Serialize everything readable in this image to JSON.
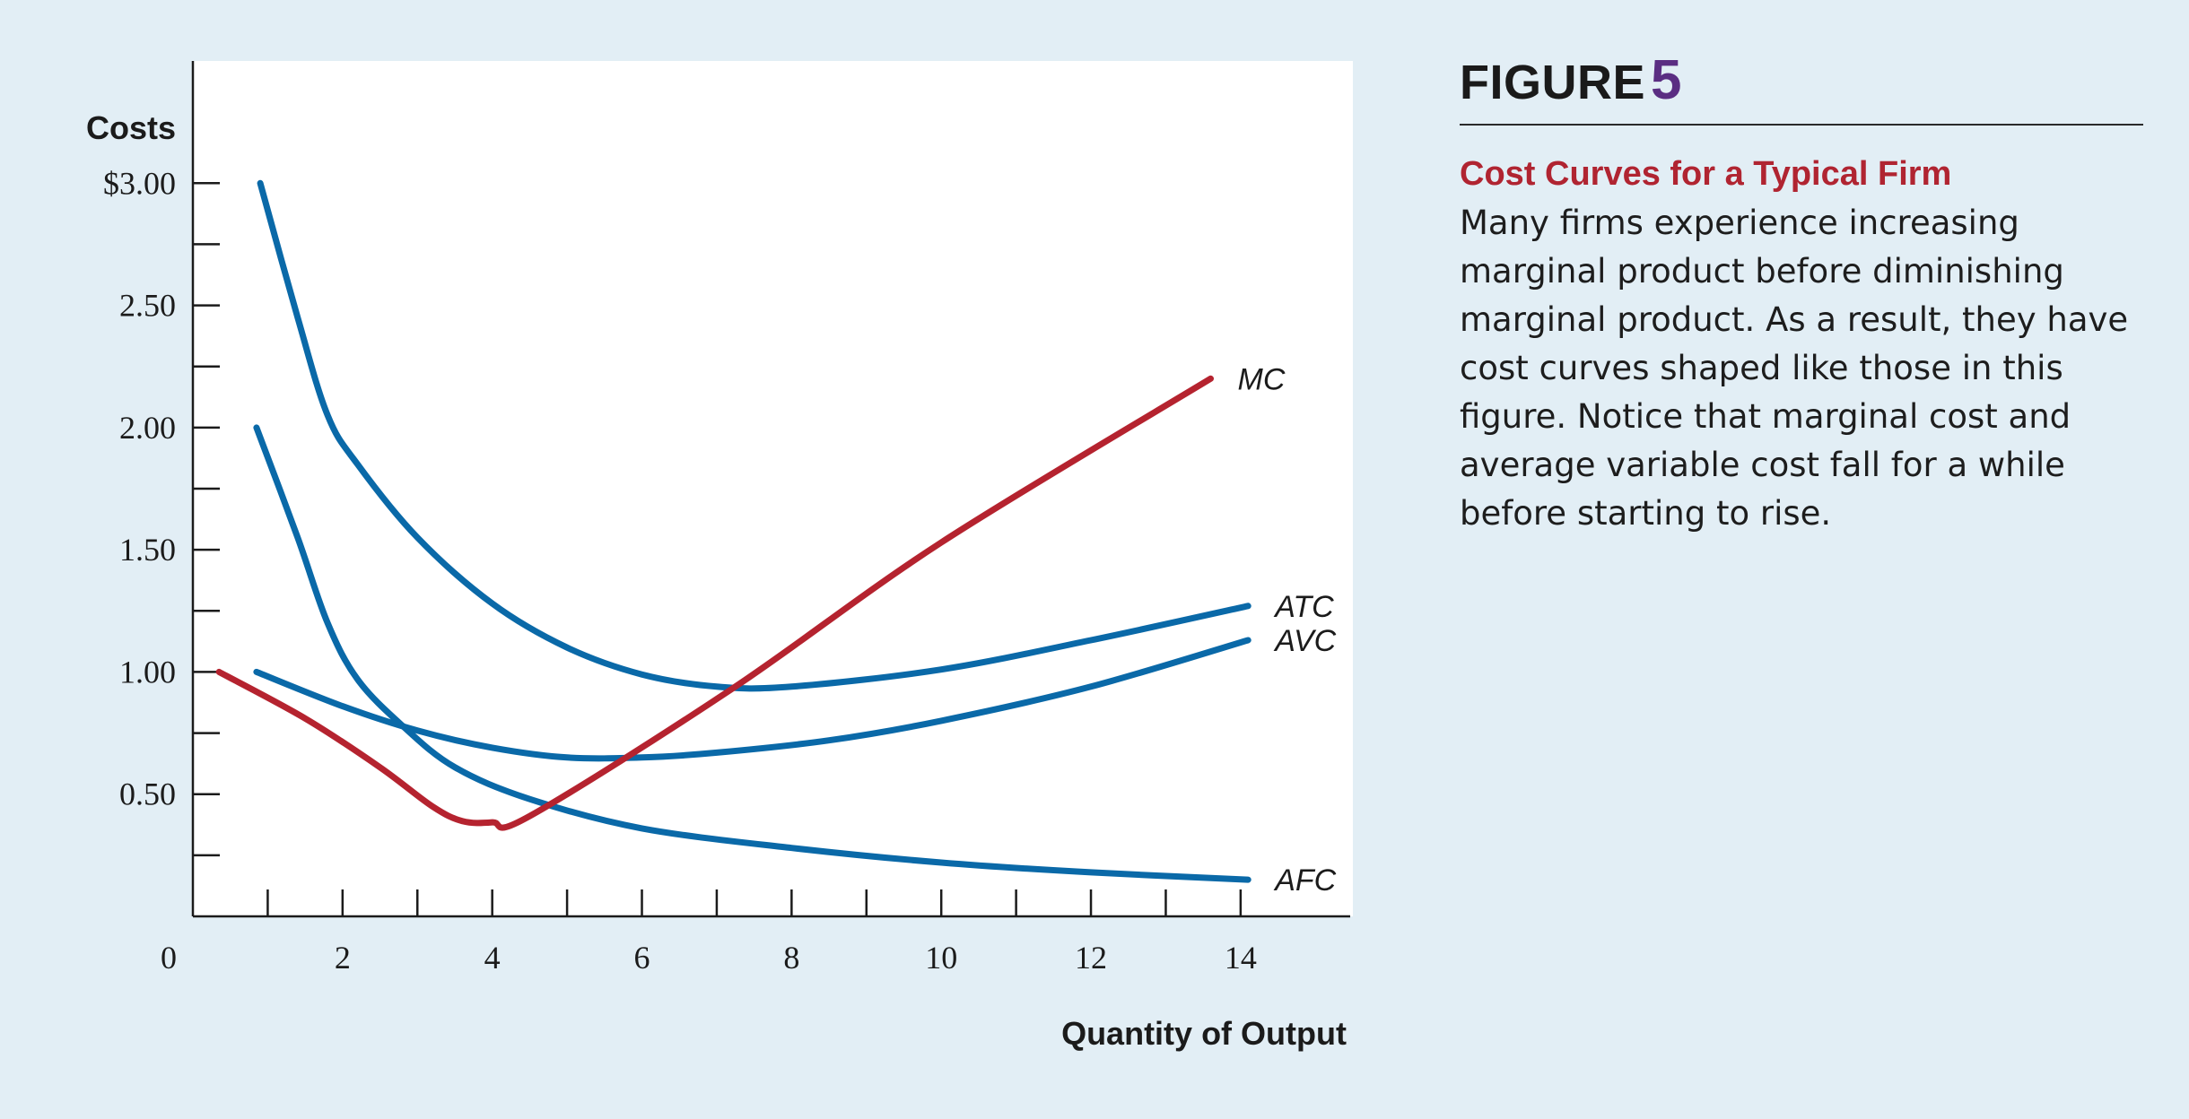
{
  "figure": {
    "label": "FIGURE",
    "number": "5",
    "subtitle": "Cost Curves for a Typical Firm",
    "body": "Many firms experience increasing marginal product before diminishing marginal product. As a result, they have cost curves shaped like those in this figure. Notice that marginal cost and average variable cost fall for a while before starting to rise."
  },
  "chart_data": {
    "type": "line",
    "ylabel": "Costs",
    "xlabel": "Quantity of Output",
    "xlim": [
      0,
      15.5
    ],
    "ylim": [
      0,
      3.5
    ],
    "x_ticks": [
      0,
      2,
      4,
      6,
      8,
      10,
      12,
      14
    ],
    "x_minor_ticks": [
      1,
      3,
      5,
      7,
      9,
      11,
      13
    ],
    "y_ticks": [
      {
        "value": 3.0,
        "label": "$3.00"
      },
      {
        "value": 2.5,
        "label": "2.50"
      },
      {
        "value": 2.0,
        "label": "2.00"
      },
      {
        "value": 1.5,
        "label": "1.50"
      },
      {
        "value": 1.0,
        "label": "1.00"
      },
      {
        "value": 0.5,
        "label": "0.50"
      }
    ],
    "y_minor_ticks": [
      2.75,
      2.25,
      1.75,
      1.25,
      0.75,
      0.25
    ],
    "x_zero_label": "0",
    "colors": {
      "avg": "#0a69a8",
      "mc": "#b5232f",
      "plot_bg": "#ffffff",
      "page_bg": "#e2eef5"
    },
    "series": [
      {
        "name": "MC",
        "color": "#b5232f",
        "points": [
          [
            0.35,
            1.0
          ],
          [
            1.5,
            0.81
          ],
          [
            2.5,
            0.61
          ],
          [
            3.2,
            0.45
          ],
          [
            3.6,
            0.39
          ],
          [
            4.0,
            0.385
          ],
          [
            4.5,
            0.41
          ],
          [
            7.2,
            0.93
          ],
          [
            10.0,
            1.53
          ],
          [
            13.6,
            2.2
          ]
        ]
      },
      {
        "name": "ATC",
        "color": "#0a69a8",
        "points": [
          [
            0.9,
            3.0
          ],
          [
            1.4,
            2.45
          ],
          [
            1.8,
            2.05
          ],
          [
            2.2,
            1.85
          ],
          [
            3.0,
            1.55
          ],
          [
            4.0,
            1.28
          ],
          [
            5.0,
            1.1
          ],
          [
            6.0,
            0.99
          ],
          [
            7.0,
            0.94
          ],
          [
            8.0,
            0.94
          ],
          [
            10.0,
            1.01
          ],
          [
            12.0,
            1.13
          ],
          [
            14.1,
            1.27
          ]
        ]
      },
      {
        "name": "AVC",
        "color": "#0a69a8",
        "points": [
          [
            0.85,
            1.0
          ],
          [
            2.0,
            0.86
          ],
          [
            3.0,
            0.76
          ],
          [
            4.0,
            0.69
          ],
          [
            5.0,
            0.65
          ],
          [
            6.0,
            0.65
          ],
          [
            7.0,
            0.67
          ],
          [
            8.5,
            0.72
          ],
          [
            10.0,
            0.8
          ],
          [
            12.0,
            0.94
          ],
          [
            14.1,
            1.13
          ]
        ]
      },
      {
        "name": "AFC",
        "color": "#0a69a8",
        "points": [
          [
            0.85,
            2.0
          ],
          [
            1.4,
            1.55
          ],
          [
            1.8,
            1.2
          ],
          [
            2.2,
            0.97
          ],
          [
            2.8,
            0.78
          ],
          [
            3.5,
            0.61
          ],
          [
            4.5,
            0.48
          ],
          [
            6.0,
            0.36
          ],
          [
            8.0,
            0.28
          ],
          [
            10.0,
            0.22
          ],
          [
            12.0,
            0.18
          ],
          [
            14.1,
            0.15
          ]
        ]
      }
    ]
  }
}
